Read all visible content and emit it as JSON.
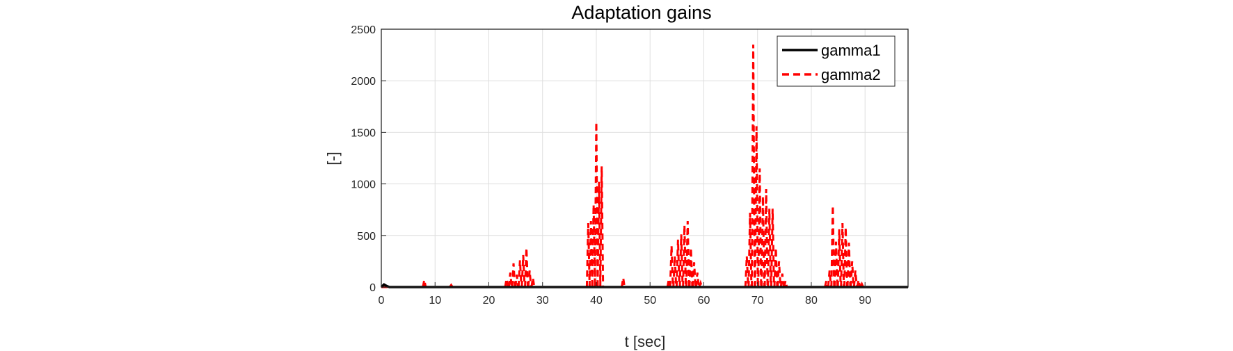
{
  "chart_data": {
    "type": "line",
    "title": "Adaptation gains",
    "xlabel": "t [sec]",
    "ylabel": "[-]",
    "xlim": [
      0,
      98
    ],
    "ylim": [
      0,
      2500
    ],
    "xticks": [
      0,
      10,
      20,
      30,
      40,
      50,
      60,
      70,
      80,
      90
    ],
    "yticks": [
      0,
      500,
      1000,
      1500,
      2000,
      2500
    ],
    "grid": true,
    "legend_position": "top-right",
    "series": [
      {
        "name": "gamma1",
        "color": "#000000",
        "style": "solid",
        "x": [
          0,
          0.5,
          1,
          1.5,
          2,
          98
        ],
        "y": [
          0,
          25,
          10,
          0,
          0,
          0
        ]
      },
      {
        "name": "gamma2",
        "color": "#ff0000",
        "style": "dashed",
        "spikes": [
          [
            8,
            70
          ],
          [
            13,
            20
          ],
          [
            23.3,
            80
          ],
          [
            24,
            140
          ],
          [
            24.6,
            230
          ],
          [
            25.2,
            120
          ],
          [
            25.8,
            260
          ],
          [
            26.4,
            310
          ],
          [
            27,
            380
          ],
          [
            27.6,
            160
          ],
          [
            28.2,
            90
          ],
          [
            38.5,
            620
          ],
          [
            39,
            640
          ],
          [
            39.5,
            800
          ],
          [
            40,
            1600
          ],
          [
            40.5,
            1020
          ],
          [
            41,
            1170
          ],
          [
            45,
            90
          ],
          [
            53.5,
            80
          ],
          [
            54,
            400
          ],
          [
            54.6,
            300
          ],
          [
            55.2,
            460
          ],
          [
            55.8,
            510
          ],
          [
            56.4,
            600
          ],
          [
            57,
            640
          ],
          [
            57.6,
            380
          ],
          [
            58.2,
            240
          ],
          [
            58.8,
            140
          ],
          [
            59.4,
            40
          ],
          [
            68,
            300
          ],
          [
            68.6,
            720
          ],
          [
            69.2,
            2350
          ],
          [
            69.8,
            1560
          ],
          [
            70.4,
            1150
          ],
          [
            71,
            880
          ],
          [
            71.6,
            950
          ],
          [
            72.2,
            760
          ],
          [
            72.8,
            760
          ],
          [
            73.4,
            380
          ],
          [
            74,
            250
          ],
          [
            74.6,
            130
          ],
          [
            75.2,
            60
          ],
          [
            82.8,
            60
          ],
          [
            83.4,
            160
          ],
          [
            84,
            790
          ],
          [
            84.6,
            440
          ],
          [
            85.2,
            560
          ],
          [
            85.8,
            620
          ],
          [
            86.4,
            580
          ],
          [
            87,
            430
          ],
          [
            87.6,
            250
          ],
          [
            88.2,
            160
          ],
          [
            88.8,
            70
          ],
          [
            89.4,
            30
          ]
        ]
      }
    ]
  }
}
